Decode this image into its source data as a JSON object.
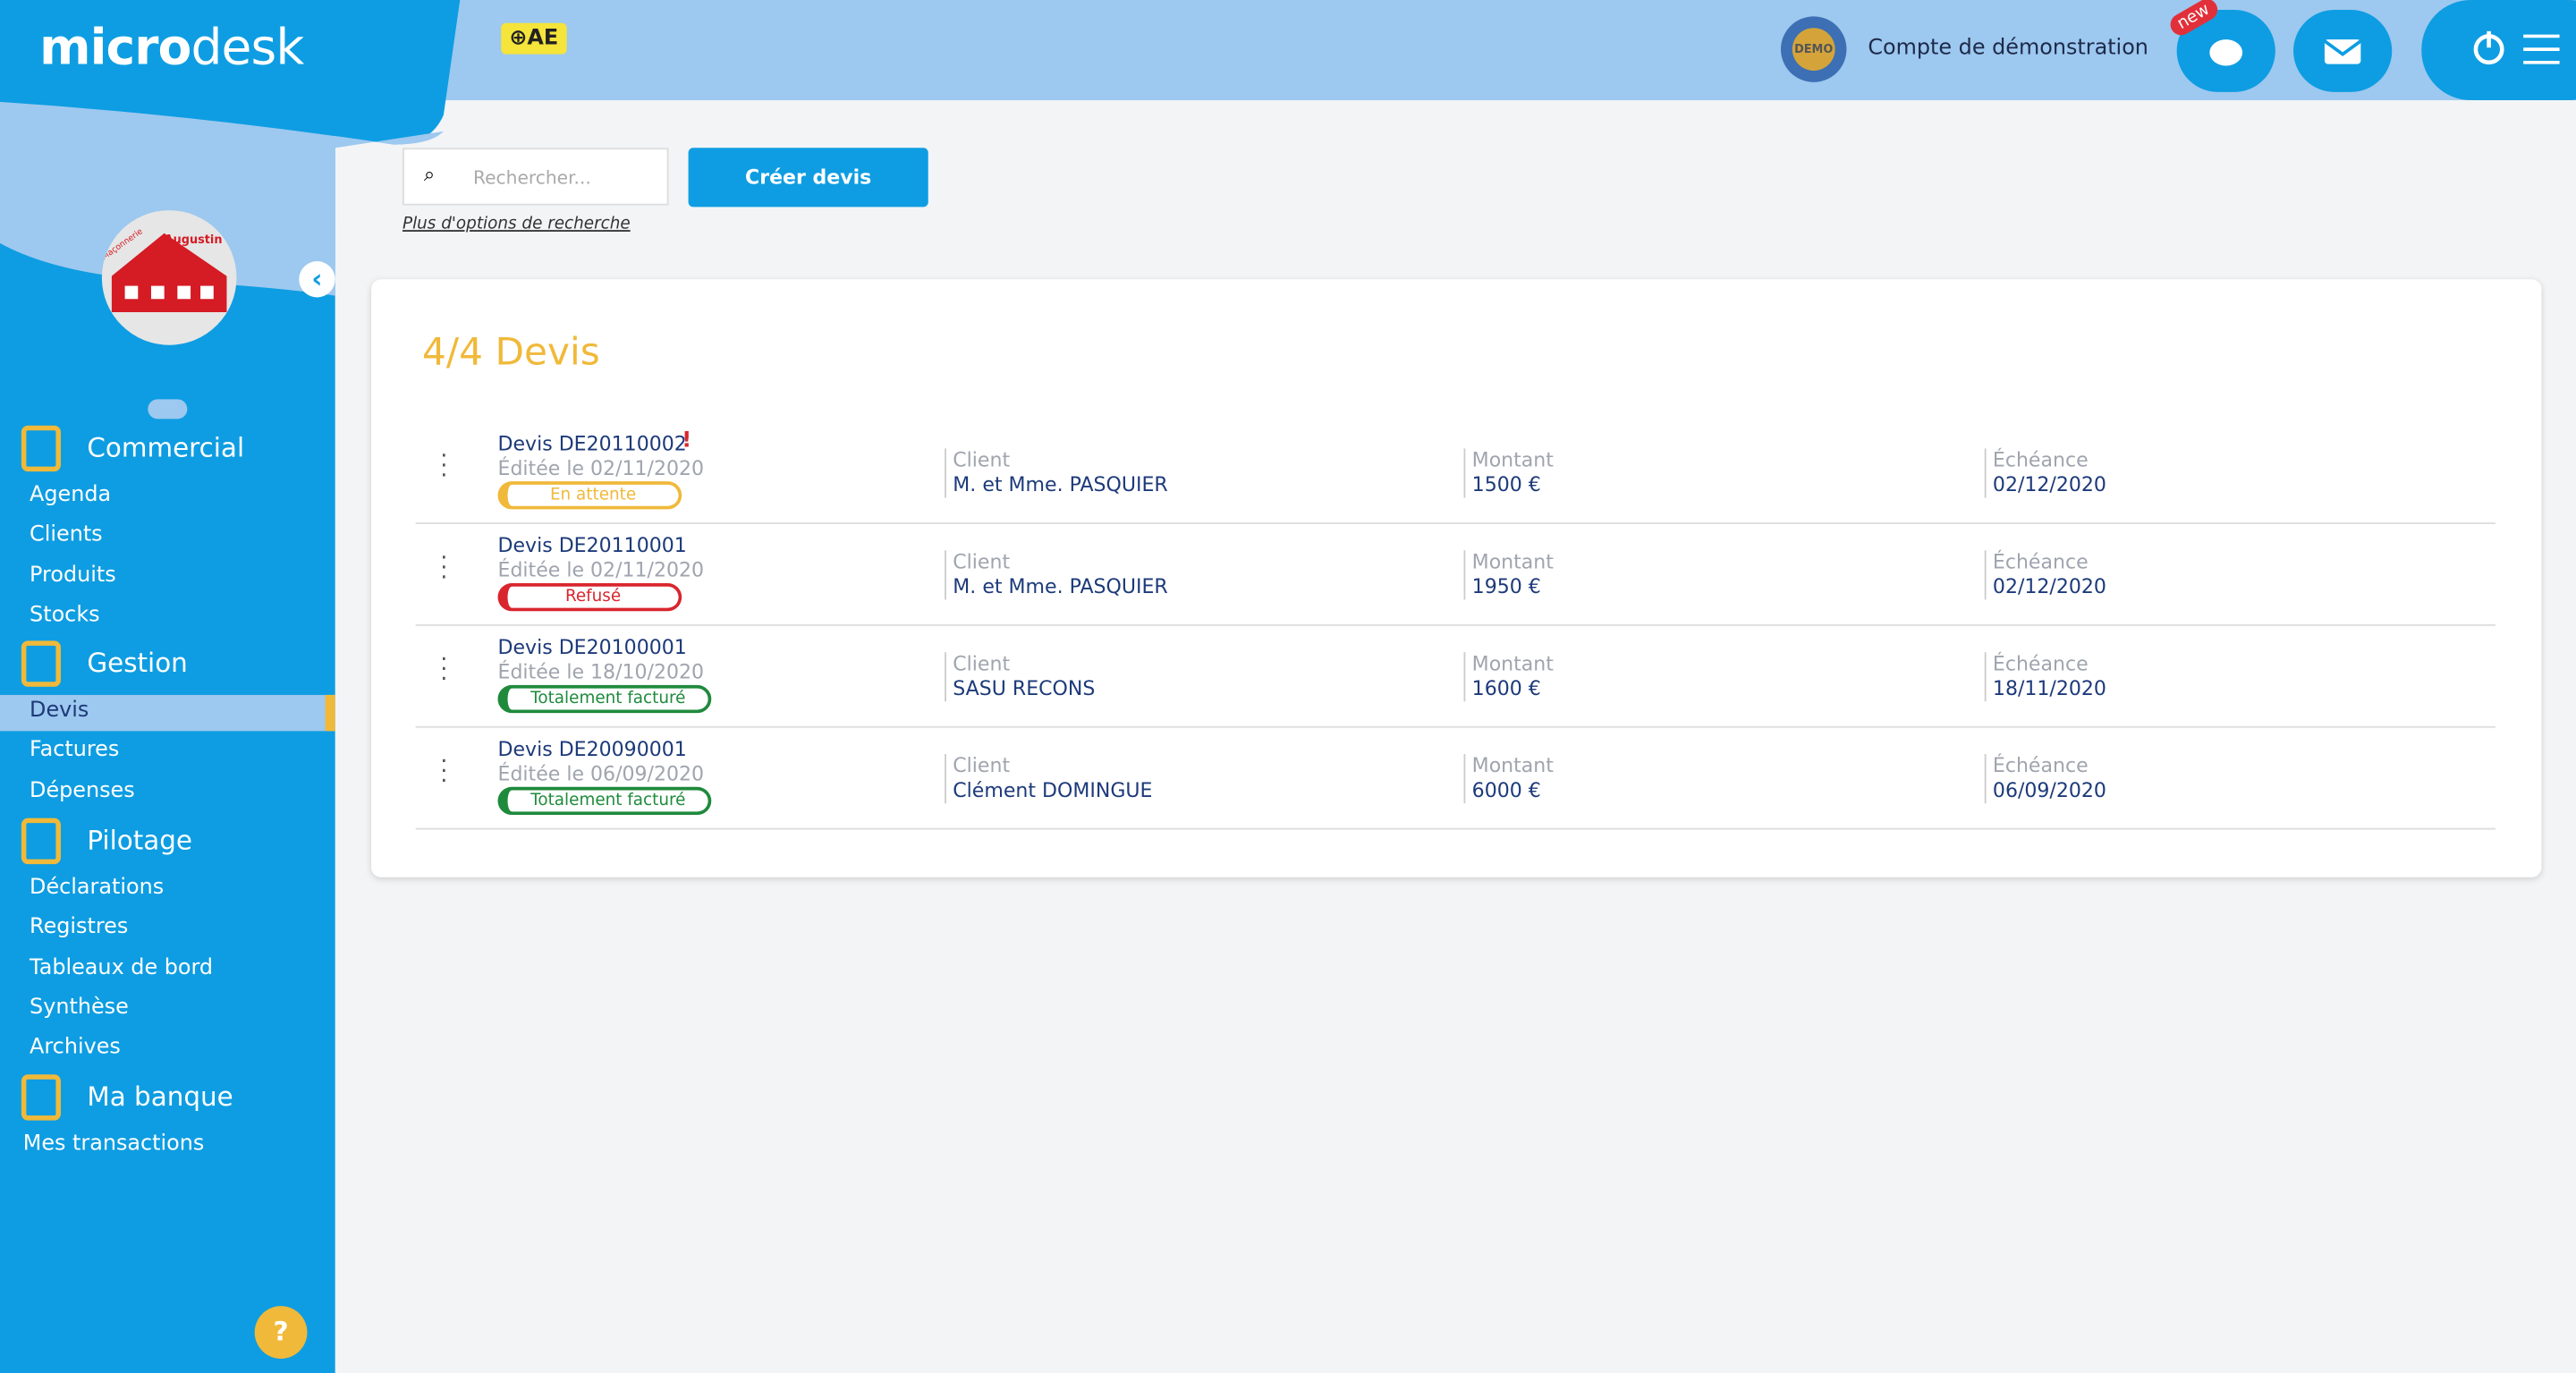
{
  "header": {
    "logo_a": "micro",
    "logo_b": "desk",
    "badge": "AE",
    "demo": "DEMO",
    "account": "Compte de démonstration",
    "new": "new"
  },
  "company": {
    "logo_top": "Augustin",
    "logo_side": "Maçonnerie"
  },
  "sidebar": [
    {
      "title": "Commercial",
      "items": [
        "Agenda",
        "Clients",
        "Produits",
        "Stocks"
      ]
    },
    {
      "title": "Gestion",
      "items": [
        "Devis",
        "Factures",
        "Dépenses"
      ]
    },
    {
      "title": "Pilotage",
      "items": [
        "Déclarations",
        "Registres",
        "Tableaux de bord",
        "Synthèse",
        "Archives"
      ]
    },
    {
      "title": "Ma banque",
      "items": [
        "Mes transactions"
      ]
    }
  ],
  "search": {
    "placeholder": "Rechercher...",
    "button": "Créer devis",
    "more": "Plus d'options de recherche"
  },
  "list": {
    "title": "4/4 Devis",
    "labels": [
      "Client",
      "Montant",
      "Échéance"
    ],
    "rows": [
      {
        "number": "Devis DE20110002",
        "flag": "!",
        "edited": "Éditée le 02/11/2020",
        "status": "En attente",
        "status_color": "#f0b93a",
        "client": "M. et Mme. PASQUIER",
        "amount": "1500 €",
        "due": "02/12/2020"
      },
      {
        "number": "Devis DE20110001",
        "edited": "Éditée le 02/11/2020",
        "status": "Refusé",
        "status_color": "#d9262e",
        "client": "M. et Mme. PASQUIER",
        "amount": "1950 €",
        "due": "02/12/2020"
      },
      {
        "number": "Devis DE20100001",
        "edited": "Éditée le 18/10/2020",
        "status": "Totalement facturé",
        "status_color": "#1f8a3c",
        "client": "SASU RECONS",
        "amount": "1600 €",
        "due": "18/11/2020"
      },
      {
        "number": "Devis DE20090001",
        "edited": "Éditée le 06/09/2020",
        "status": "Totalement facturé",
        "status_color": "#1f8a3c",
        "client": "Clément DOMINGUE",
        "amount": "6000 €",
        "due": "06/09/2020"
      }
    ]
  }
}
